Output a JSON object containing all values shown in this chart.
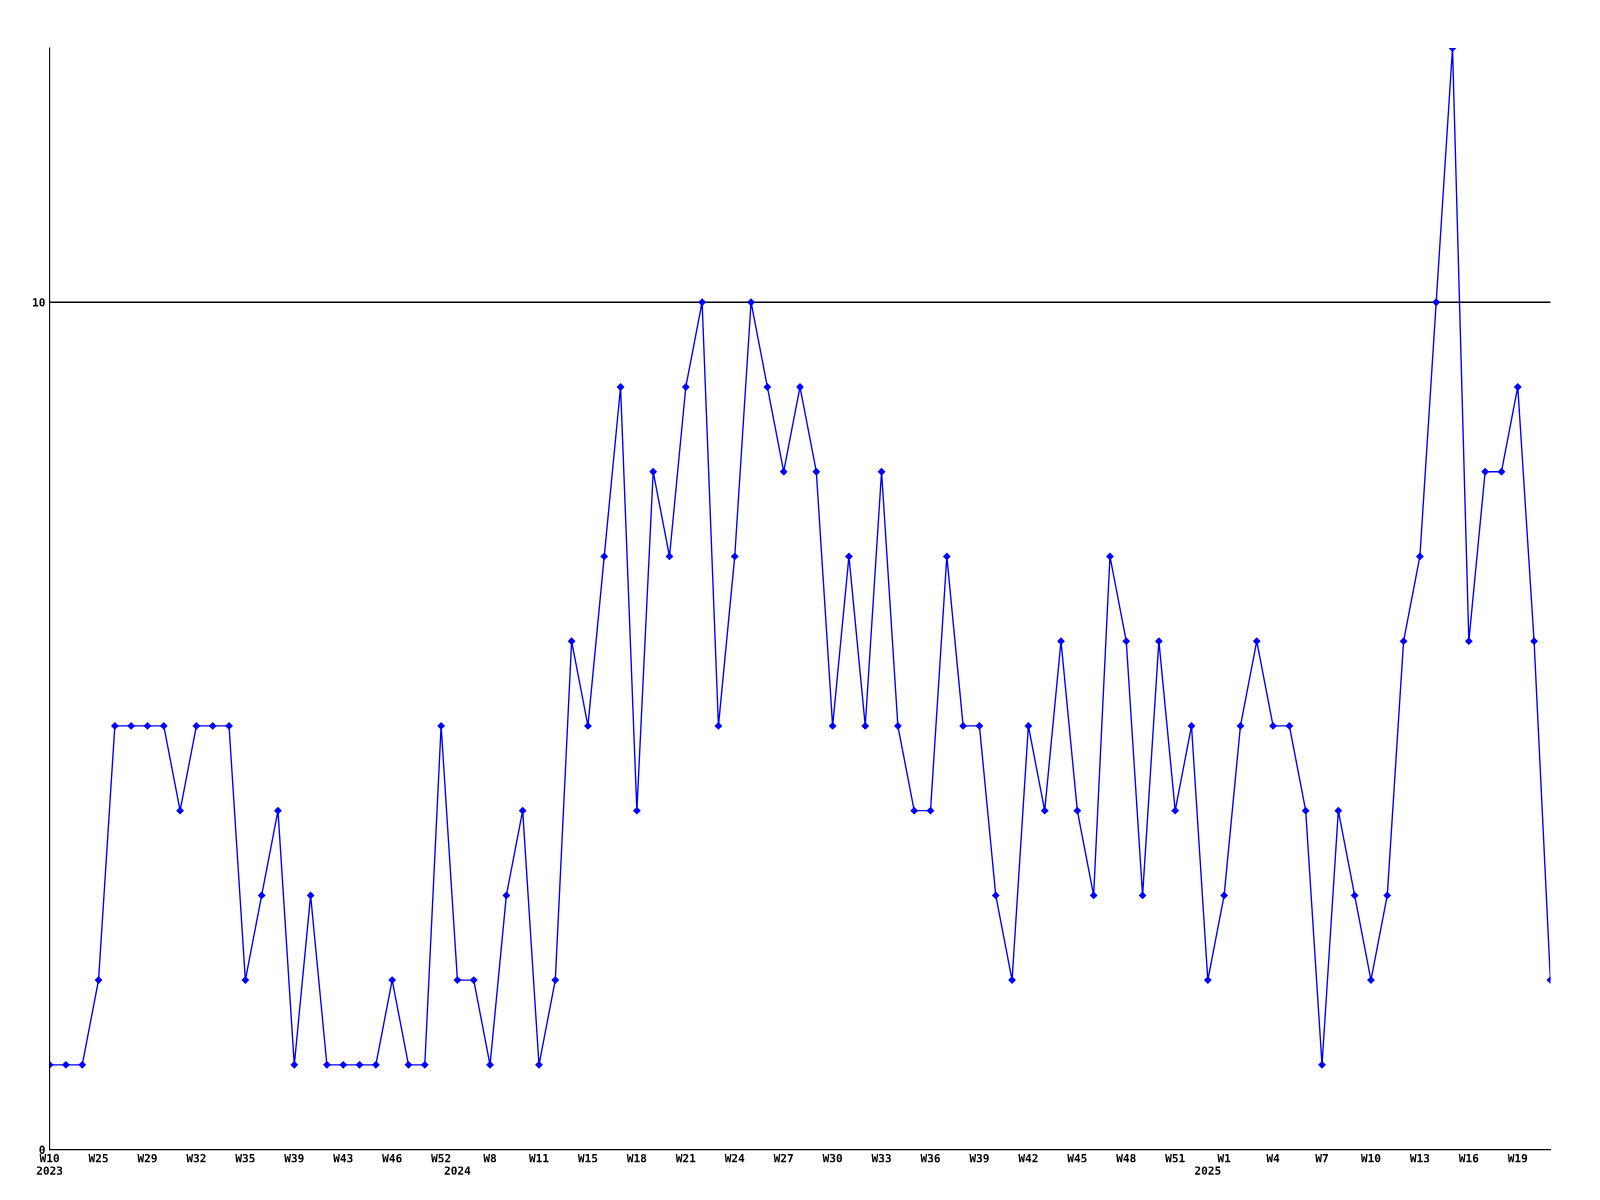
{
  "chart_data": {
    "type": "line",
    "categories": [
      "W10\n2023",
      null,
      null,
      "W25",
      null,
      null,
      "W29",
      null,
      null,
      "W32",
      null,
      null,
      "W35",
      null,
      null,
      "W39",
      null,
      null,
      "W43",
      null,
      null,
      "W46",
      null,
      null,
      "W52",
      "\n2024",
      null,
      "W8",
      null,
      null,
      "W11",
      null,
      null,
      "W15",
      null,
      null,
      "W18",
      null,
      null,
      "W21",
      null,
      null,
      "W24",
      null,
      null,
      "W27",
      null,
      null,
      "W30",
      null,
      null,
      "W33",
      null,
      null,
      "W36",
      null,
      null,
      "W39",
      null,
      null,
      "W42",
      null,
      null,
      "W45",
      null,
      null,
      "W48",
      null,
      null,
      "W51",
      null,
      "\n2025",
      "W1",
      null,
      null,
      "W4",
      null,
      null,
      "W7",
      null,
      null,
      "W10",
      null,
      null,
      "W13",
      null,
      null,
      "W16",
      null,
      null,
      "W19",
      null,
      null
    ],
    "series": [
      {
        "color": "#0000ff",
        "values": [
          1,
          1,
          1,
          2,
          5,
          5,
          5,
          5,
          4,
          5,
          5,
          5,
          2,
          3,
          4,
          1,
          3,
          1,
          1,
          1,
          1,
          2,
          1,
          1,
          5,
          2,
          2,
          1,
          3,
          4,
          1,
          2,
          6,
          5,
          7,
          9,
          4,
          8,
          7,
          9,
          10,
          5,
          7,
          10,
          9,
          8,
          9,
          8,
          5,
          7,
          5,
          8,
          5,
          4,
          4,
          7,
          5,
          5,
          3,
          2,
          5,
          4,
          6,
          4,
          3,
          7,
          6,
          3,
          6,
          4,
          5,
          2,
          3,
          5,
          6,
          5,
          5,
          4,
          1,
          4,
          3,
          2,
          3,
          6,
          7,
          10,
          13,
          6,
          8,
          8,
          9,
          6,
          2
        ]
      }
    ],
    "ylim": [
      0,
      13
    ],
    "yticks": [
      0,
      10
    ],
    "ref_lines": [
      {
        "axis": "y",
        "value": 10,
        "color": "#000000"
      }
    ],
    "marker": "diamond",
    "line_style": "solid",
    "grid": false,
    "legend": false
  }
}
